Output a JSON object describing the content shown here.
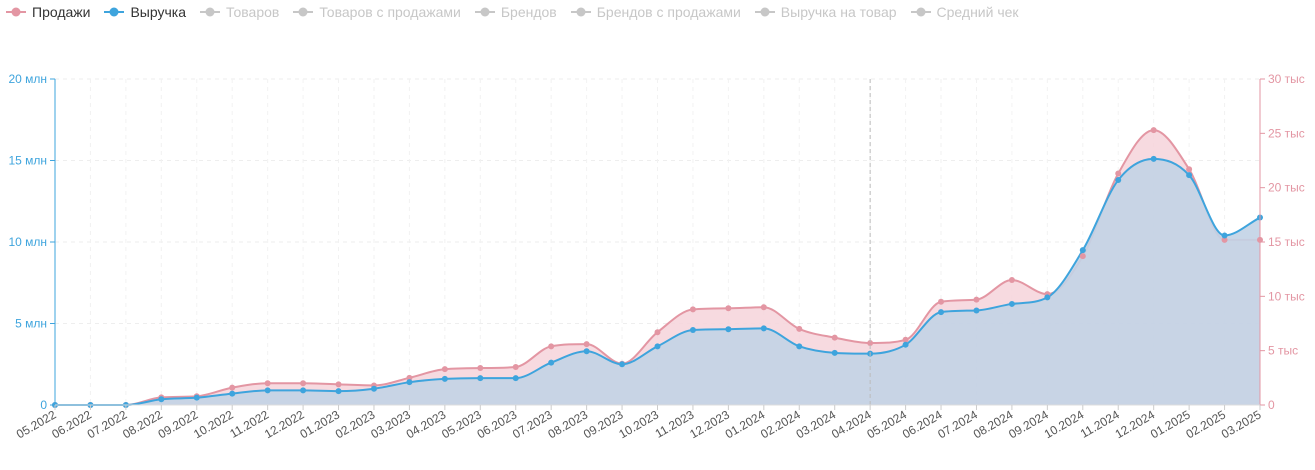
{
  "legend": {
    "items": [
      {
        "label": "Продажи",
        "color": "#e396a3",
        "active": true,
        "icon": "line-dot-icon"
      },
      {
        "label": "Выручка",
        "color": "#3ea4dd",
        "active": true,
        "icon": "line-dot-icon"
      },
      {
        "label": "Товаров",
        "color": "#c7c7c7",
        "active": false,
        "icon": "line-dot-icon"
      },
      {
        "label": "Товаров с продажами",
        "color": "#c7c7c7",
        "active": false,
        "icon": "line-dot-icon"
      },
      {
        "label": "Брендов",
        "color": "#c7c7c7",
        "active": false,
        "icon": "line-dot-icon"
      },
      {
        "label": "Брендов с продажами",
        "color": "#c7c7c7",
        "active": false,
        "icon": "line-dot-icon"
      },
      {
        "label": "Выручка на товар",
        "color": "#c7c7c7",
        "active": false,
        "icon": "line-dot-icon"
      },
      {
        "label": "Средний чек",
        "color": "#c7c7c7",
        "active": false,
        "icon": "line-dot-icon"
      }
    ]
  },
  "chart_data": {
    "type": "area",
    "title": "",
    "categories": [
      "05.2022",
      "06.2022",
      "07.2022",
      "08.2022",
      "09.2022",
      "10.2022",
      "11.2022",
      "12.2022",
      "01.2023",
      "02.2023",
      "03.2023",
      "04.2023",
      "05.2023",
      "06.2023",
      "07.2023",
      "08.2023",
      "09.2023",
      "10.2023",
      "11.2023",
      "12.2023",
      "01.2024",
      "02.2024",
      "03.2024",
      "04.2024",
      "05.2024",
      "06.2024",
      "07.2024",
      "08.2024",
      "09.2024",
      "10.2024",
      "11.2024",
      "12.2024",
      "01.2025",
      "02.2025",
      "03.2025"
    ],
    "series": [
      {
        "name": "Продажи",
        "axis": "right",
        "color": "#e396a3",
        "fill": "#f6d3da",
        "values": [
          0,
          0,
          0,
          700,
          800,
          1600,
          2000,
          2000,
          1900,
          1800,
          2500,
          3300,
          3400,
          3500,
          5400,
          5600,
          3800,
          6700,
          8800,
          8900,
          9000,
          7000,
          6200,
          5700,
          6000,
          9500,
          9700,
          11500,
          10200,
          13700,
          21300,
          25300,
          21700,
          15200,
          15200
        ]
      },
      {
        "name": "Выручка",
        "axis": "left",
        "color": "#3ea4dd",
        "fill": "#c2d3e6",
        "values": [
          0,
          0,
          0,
          350000,
          450000,
          700000,
          900000,
          900000,
          850000,
          1000000,
          1400000,
          1600000,
          1650000,
          1650000,
          2600000,
          3300000,
          2500000,
          3600000,
          4600000,
          4650000,
          4700000,
          3600000,
          3200000,
          3150000,
          3700000,
          5700000,
          5800000,
          6200000,
          6600000,
          9500000,
          13800000,
          15100000,
          14100000,
          10400000,
          11500000
        ]
      }
    ],
    "yaxis_left": {
      "min": 0,
      "max": 20000000,
      "ticks": [
        "0",
        "5 млн",
        "10 млн",
        "15 млн",
        "20 млн"
      ],
      "color": "#3ea4dd"
    },
    "yaxis_right": {
      "min": 0,
      "max": 30000,
      "ticks": [
        "0",
        "5 тыс",
        "10 тыс",
        "15 тыс",
        "20 тыс",
        "25 тыс",
        "30 тыс"
      ],
      "color": "#e396a3"
    },
    "grid": true,
    "hover_category": "04.2024",
    "legend_position": "top-left"
  }
}
